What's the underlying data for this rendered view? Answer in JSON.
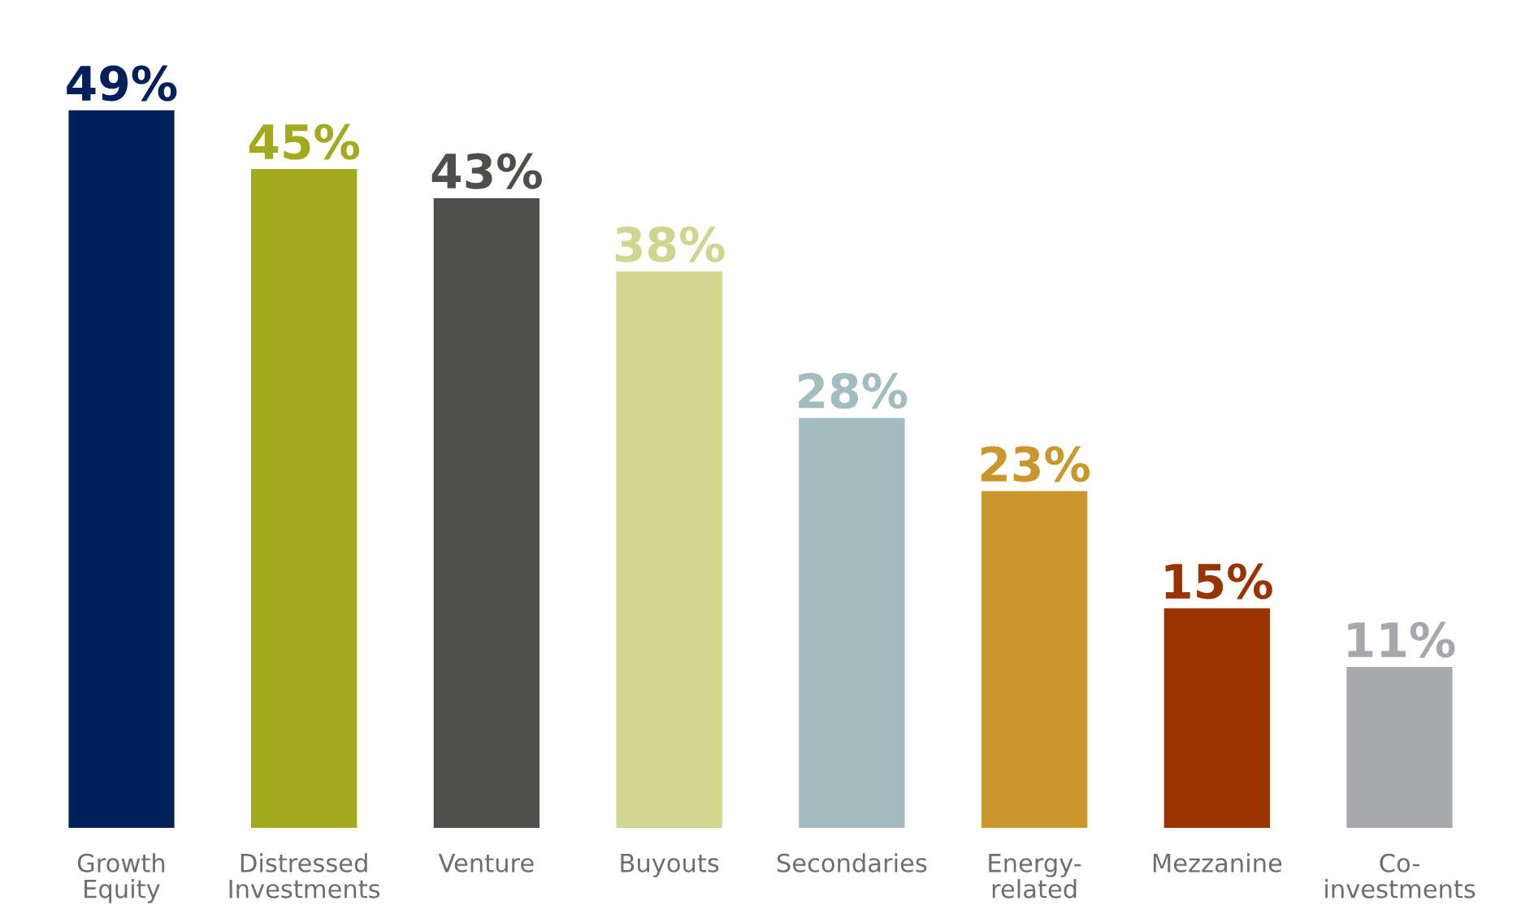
{
  "chart_data": {
    "type": "bar",
    "categories": [
      "Growth\nEquity",
      "Distressed\nInvestments",
      "Venture",
      "Buyouts",
      "Secondaries",
      "Energy-\nrelated",
      "Mezzanine",
      "Co-\ninvestments"
    ],
    "values": [
      49,
      45,
      43,
      38,
      28,
      23,
      15,
      11
    ],
    "colors": [
      "#00205b",
      "#a4aa1e",
      "#4e4f4a",
      "#d0d68f",
      "#a3bcc0",
      "#c9972c",
      "#993300",
      "#a7a8ab"
    ],
    "value_labels": [
      "49%",
      "45%",
      "43%",
      "38%",
      "28%",
      "23%",
      "15%",
      "11%"
    ]
  }
}
